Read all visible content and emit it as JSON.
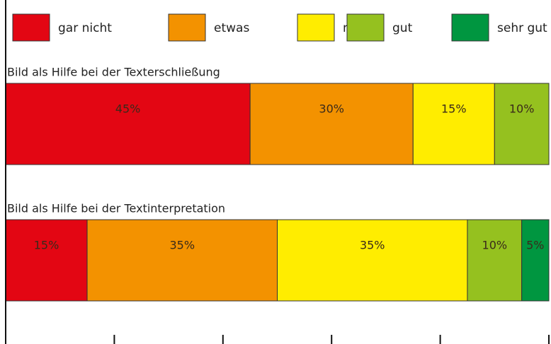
{
  "chart_data": {
    "type": "stacked-bar-horizontal",
    "categories": [
      "Bild als Hilfe bei der Texterschließung",
      "Bild als Hilfe bei der Textinterpretation"
    ],
    "series": [
      {
        "name": "gar nicht",
        "color": "#e30613",
        "values": [
          45,
          15
        ],
        "value_labels": [
          "45%",
          "15%"
        ]
      },
      {
        "name": "etwas",
        "color": "#f39200",
        "values": [
          30,
          35
        ],
        "value_labels": [
          "30%",
          "35%"
        ]
      },
      {
        "name": "mittel",
        "color": "#ffed00",
        "values": [
          15,
          35
        ],
        "value_labels": [
          "15%",
          "35%"
        ]
      },
      {
        "name": "gut",
        "color": "#95c11f",
        "values": [
          10,
          10
        ],
        "value_labels": [
          "10%",
          "10%"
        ]
      },
      {
        "name": "sehr gut",
        "color": "#009640",
        "values": [
          0,
          5
        ],
        "value_labels": [
          null,
          "5%"
        ]
      }
    ],
    "xlim": [
      0,
      100
    ],
    "xticks": [
      0,
      20,
      40,
      60,
      80,
      100
    ]
  }
}
